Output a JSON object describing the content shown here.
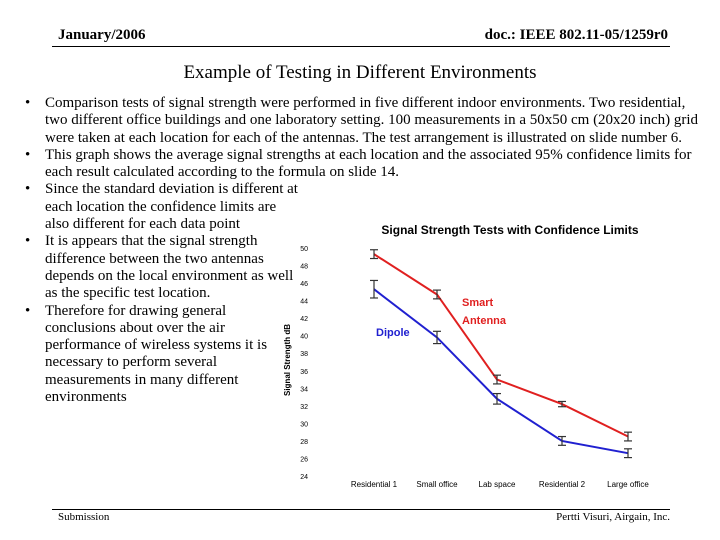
{
  "header": {
    "date": "January/2006",
    "doc": "doc.: IEEE 802.11-05/1259r0"
  },
  "title": "Example of Testing in Different Environments",
  "bullets": [
    "Comparison tests of signal strength were performed in five different indoor environments. Two residential, two different office buildings and one laboratory setting. 100 measurements in a 50x50 cm (20x20 inch) grid were taken at each location for each of the antennas. The test arrangement is illustrated on slide number 6.",
    "This graph shows the average signal strengths at each location and the associated 95% confidence limits for each result calculated according to the formula on slide 14.",
    "Since the standard deviation is different at each location the confidence limits are also different for each data point",
    "It is appears that the signal strength difference between the two antennas depends on the local environment as well as the specific test location.",
    "Therefore for drawing general conclusions about over the air performance of wireless systems it is necessary to perform several measurements in many different environments"
  ],
  "footer": {
    "left": "Submission",
    "right": "Pertti Visuri, Airgain, Inc."
  },
  "chart_data": {
    "type": "line",
    "title": "Signal Strength Tests with Confidence Limits",
    "xlabel": "",
    "ylabel": "Signal Strength  dB",
    "categories": [
      "Residential 1",
      "Small office",
      "Lab space",
      "Residential 2",
      "Large office"
    ],
    "ylim": [
      24,
      50
    ],
    "yticks": [
      24,
      26,
      28,
      30,
      32,
      34,
      36,
      38,
      40,
      42,
      44,
      46,
      48,
      50
    ],
    "grid": false,
    "series": [
      {
        "name": "Smart Antenna",
        "label_lines": [
          "Smart",
          "Antenna"
        ],
        "color": "#e02020",
        "values": [
          49.3,
          44.7,
          35.0,
          32.2,
          28.5
        ],
        "ci": [
          0.5,
          0.5,
          0.5,
          0.3,
          0.5
        ]
      },
      {
        "name": "Dipole",
        "label_lines": [
          "Dipole"
        ],
        "color": "#2020d0",
        "values": [
          45.3,
          39.8,
          32.8,
          28.0,
          26.6
        ],
        "ci": [
          1.0,
          0.7,
          0.6,
          0.5,
          0.5
        ]
      }
    ]
  }
}
